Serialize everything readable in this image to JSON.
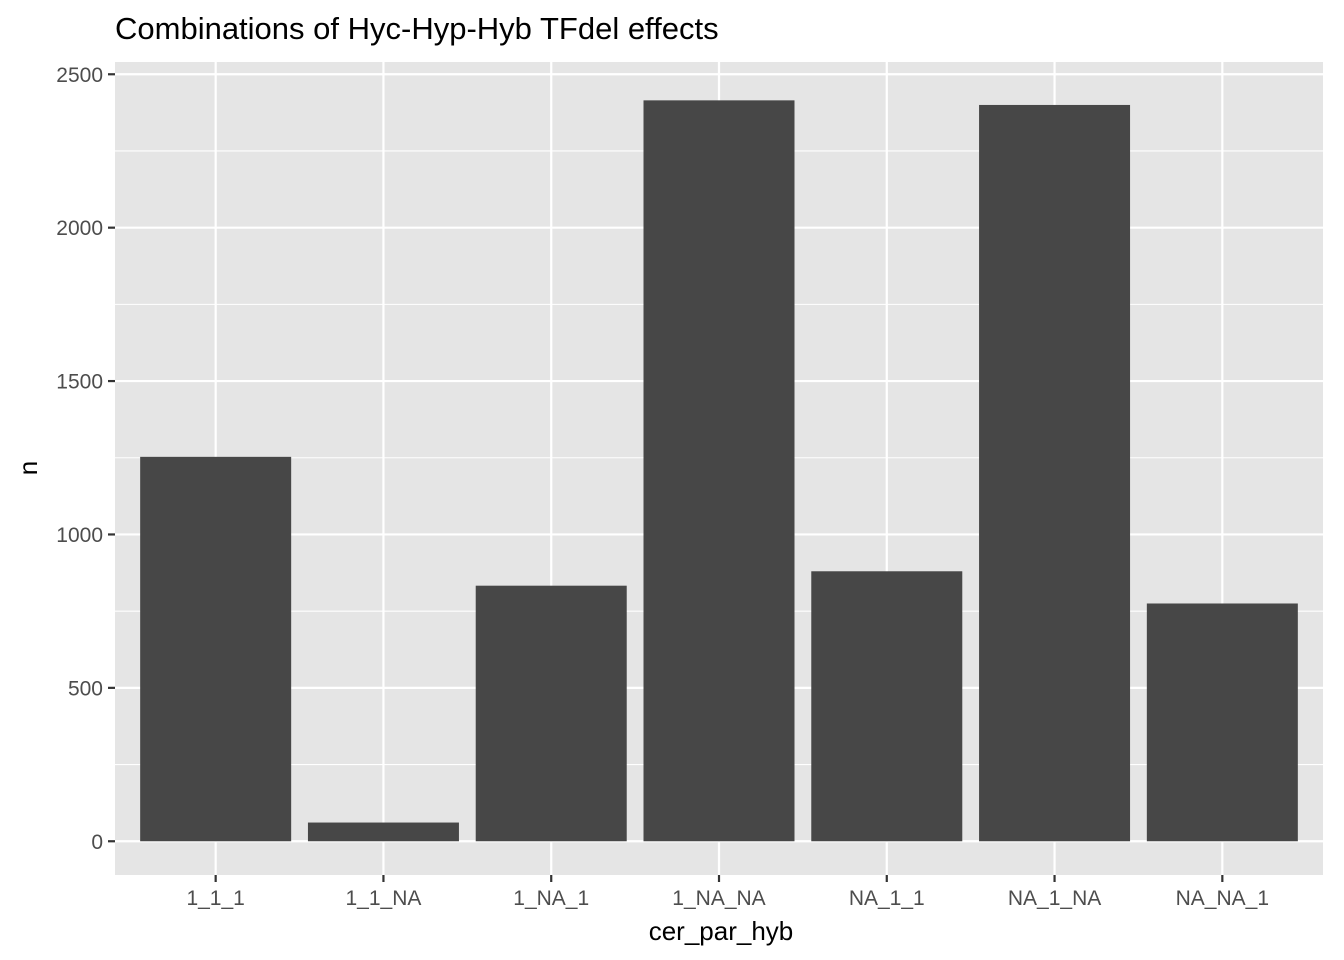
{
  "chart_data": {
    "type": "bar",
    "title": "Combinations of Hyc-Hyp-Hyb TFdel effects",
    "xlabel": "cer_par_hyb",
    "ylabel": "n",
    "categories": [
      "1_1_1",
      "1_1_NA",
      "1_NA_1",
      "1_NA_NA",
      "NA_1_1",
      "NA_1_NA",
      "NA_NA_1"
    ],
    "values": [
      1253,
      61,
      833,
      2415,
      880,
      2400,
      775
    ],
    "ylim": [
      -110,
      2540
    ],
    "yticks": [
      0,
      500,
      1000,
      1500,
      2000,
      2500
    ],
    "grid": true,
    "legend": "none",
    "colors": {
      "bar": "#474747",
      "panel": "#e5e5e5",
      "grid": "#ffffff",
      "tick": "#333333"
    }
  }
}
